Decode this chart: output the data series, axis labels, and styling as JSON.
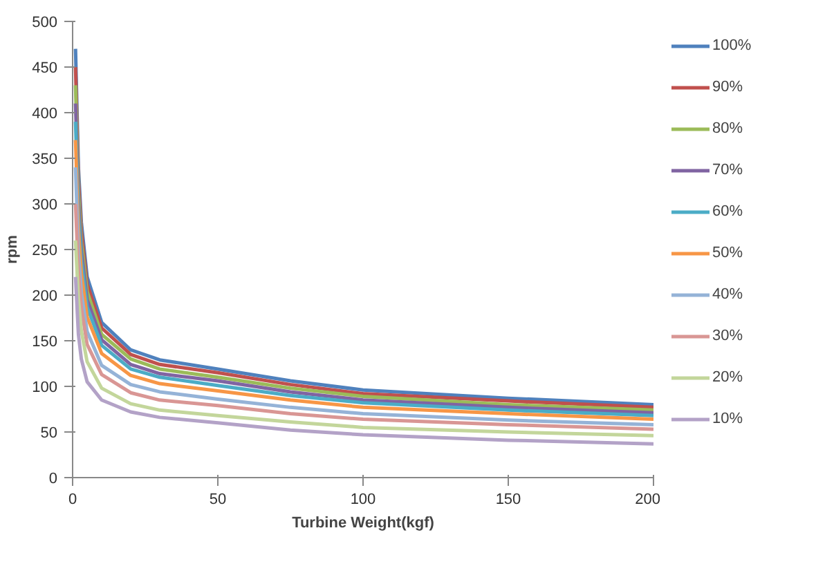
{
  "chart_data": {
    "type": "line",
    "xlabel": "Turbine Weight(kgf)",
    "ylabel": "rpm",
    "x": [
      1,
      2,
      3,
      5,
      10,
      20,
      30,
      50,
      75,
      100,
      150,
      200
    ],
    "xlim": [
      0,
      200
    ],
    "xticks": [
      0,
      50,
      100,
      150,
      200
    ],
    "ylim": [
      0,
      500
    ],
    "yticks": [
      0,
      50,
      100,
      150,
      200,
      250,
      300,
      350,
      400,
      450,
      500
    ],
    "grid": false,
    "legend": "right",
    "marker": "none",
    "line_style": "solid",
    "series": [
      {
        "name": "100%",
        "color": "#4f81bd",
        "values": [
          470,
          340,
          280,
          220,
          170,
          140,
          129,
          119,
          106,
          96,
          87,
          80
        ]
      },
      {
        "name": "90%",
        "color": "#c0504d",
        "values": [
          450,
          327,
          270,
          212,
          164,
          135,
          124,
          115,
          102,
          92,
          84,
          77
        ]
      },
      {
        "name": "80%",
        "color": "#9bbb59",
        "values": [
          430,
          315,
          259,
          204,
          157,
          130,
          119,
          110,
          98,
          89,
          80,
          74
        ]
      },
      {
        "name": "70%",
        "color": "#8064a2",
        "values": [
          410,
          302,
          249,
          195,
          151,
          124,
          114,
          106,
          94,
          85,
          77,
          71
        ]
      },
      {
        "name": "60%",
        "color": "#4bacc6",
        "values": [
          390,
          289,
          238,
          187,
          145,
          119,
          110,
          101,
          90,
          82,
          74,
          68
        ]
      },
      {
        "name": "50%",
        "color": "#f79646",
        "values": [
          370,
          272,
          224,
          176,
          136,
          112,
          103,
          95,
          85,
          77,
          70,
          64
        ]
      },
      {
        "name": "40%",
        "color": "#95b3d7",
        "values": [
          340,
          247,
          203,
          160,
          123,
          102,
          94,
          86,
          77,
          70,
          63,
          58
        ]
      },
      {
        "name": "30%",
        "color": "#d99694",
        "values": [
          300,
          225,
          186,
          146,
          113,
          93,
          85,
          79,
          70,
          64,
          58,
          53
        ]
      },
      {
        "name": "20%",
        "color": "#c3d69b",
        "values": [
          260,
          196,
          161,
          127,
          98,
          81,
          74,
          68,
          61,
          55,
          50,
          46
        ]
      },
      {
        "name": "10%",
        "color": "#b3a2c7",
        "values": [
          220,
          157,
          130,
          105,
          85,
          72,
          66,
          60,
          52,
          47,
          41,
          37
        ]
      }
    ]
  }
}
